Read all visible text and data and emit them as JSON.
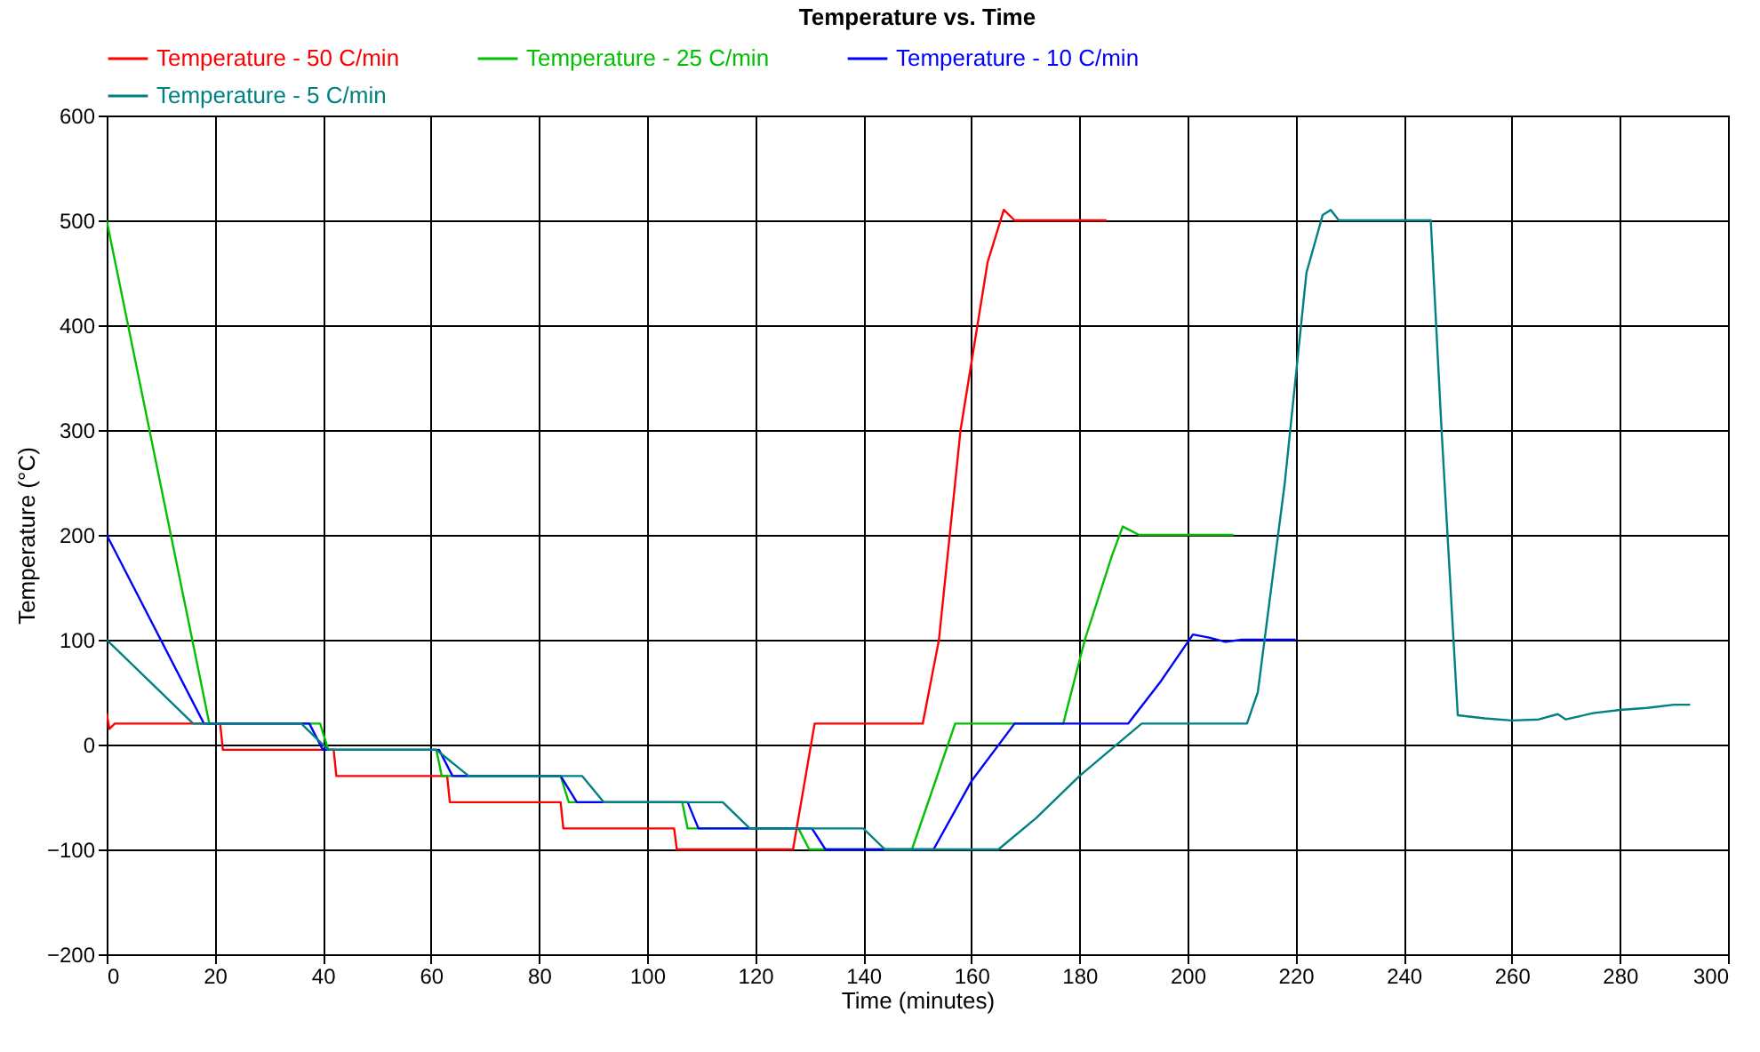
{
  "chart_data": {
    "type": "line",
    "title": "Temperature vs. Time",
    "xlabel": "Time (minutes)",
    "ylabel": "Temperature (°C)",
    "xlim": [
      0,
      300
    ],
    "xticks": [
      0,
      20,
      40,
      60,
      80,
      100,
      120,
      140,
      160,
      180,
      200,
      220,
      240,
      260,
      280,
      300
    ],
    "ylim": [
      -200,
      600
    ],
    "yticks": [
      -200,
      -100,
      0,
      100,
      200,
      300,
      400,
      500,
      600
    ],
    "grid": true,
    "legend": "top",
    "marker": "none",
    "line_style": "solid",
    "series": [
      {
        "name": "Temperature - 50 C/min",
        "color": "#ff0000",
        "x": [
          0,
          0.5,
          1.5,
          3,
          21,
          21.5,
          42,
          42.5,
          63,
          63.5,
          84,
          84.5,
          105,
          105.5,
          127,
          131,
          151,
          154,
          158,
          163,
          166,
          168,
          185
        ],
        "values": [
          30,
          15,
          20,
          20,
          20,
          -5,
          -5,
          -30,
          -30,
          -55,
          -55,
          -80,
          -80,
          -100,
          -100,
          20,
          20,
          100,
          300,
          460,
          510,
          500,
          500
        ]
      },
      {
        "name": "Temperature - 25 C/min",
        "color": "#00c000",
        "x": [
          0,
          19,
          39.5,
          41,
          61,
          62,
          84,
          85.5,
          106.5,
          107.5,
          128,
          130,
          149,
          157,
          177,
          181,
          186,
          188,
          191,
          193,
          208.5
        ],
        "values": [
          500,
          20,
          20,
          -5,
          -5,
          -30,
          -30,
          -55,
          -55,
          -80,
          -80,
          -100,
          -100,
          20,
          20,
          100,
          180,
          208,
          200,
          200,
          200
        ]
      },
      {
        "name": "Temperature - 10 C/min",
        "color": "#0000ff",
        "x": [
          0,
          18,
          37.5,
          40,
          61.5,
          64,
          84,
          87,
          107.5,
          109.5,
          130.5,
          133,
          153,
          160,
          168,
          189,
          195,
          201,
          204,
          207,
          210,
          220
        ],
        "values": [
          200,
          20,
          20,
          -5,
          -5,
          -30,
          -30,
          -55,
          -55,
          -80,
          -80,
          -100,
          -100,
          -35,
          20,
          20,
          60,
          105,
          102,
          98,
          100,
          100
        ]
      },
      {
        "name": "Temperature - 5 C/min",
        "color": "#008080",
        "x": [
          0,
          16,
          36,
          41,
          61,
          67,
          88,
          92,
          114,
          119,
          140,
          144,
          165,
          172,
          180,
          191.5,
          211,
          213,
          218,
          222,
          225,
          226.5,
          228,
          245,
          247,
          250,
          255,
          260,
          265,
          268.5,
          270,
          275,
          280,
          285,
          290,
          293
        ],
        "values": [
          100,
          20,
          20,
          -5,
          -5,
          -30,
          -30,
          -55,
          -55,
          -80,
          -80,
          -100,
          -100,
          -70,
          -30,
          20,
          20,
          50,
          250,
          450,
          505,
          510,
          500,
          500,
          300,
          28,
          25,
          23,
          24,
          29,
          24,
          30,
          33,
          35,
          38,
          38
        ]
      }
    ]
  }
}
